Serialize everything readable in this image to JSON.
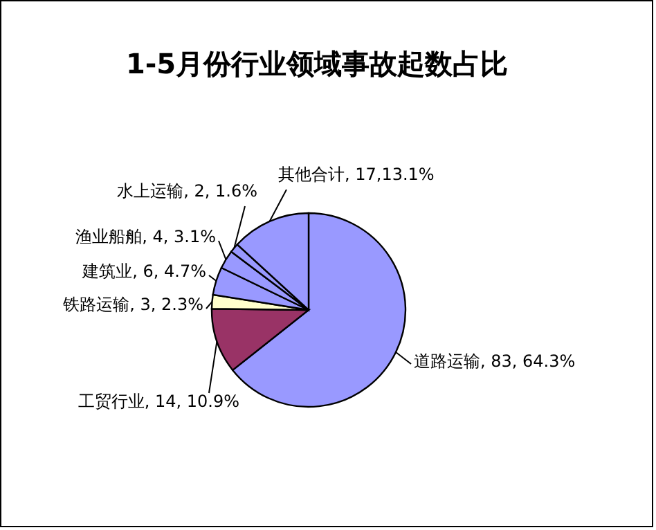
{
  "chart_data": {
    "type": "pie",
    "title": "1-5月份行业领域事故起数占比",
    "categories": [
      "道路运输",
      "工贸行业",
      "铁路运输",
      "建筑业",
      "渔业船舶",
      "水上运输",
      "其他合计"
    ],
    "values": [
      83,
      14,
      3,
      6,
      4,
      2,
      17
    ],
    "value_labels": [
      "83, 64.3%",
      "14, 10.9%",
      "3, 2.3%",
      "6, 4.7%",
      "4, 3.1%",
      "2, 1.6%",
      "17,13.1%"
    ],
    "colors": [
      "#9999ff",
      "#993366",
      "#ffffcc",
      "#9999ff",
      "#9999ff",
      "#9999ff",
      "#9999ff"
    ],
    "legend": false
  }
}
